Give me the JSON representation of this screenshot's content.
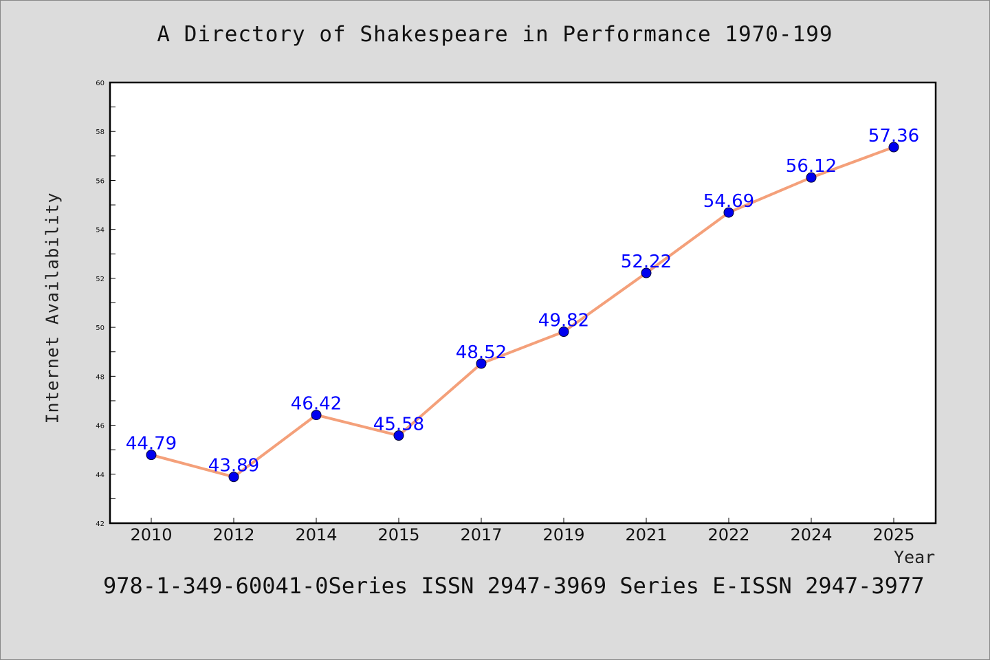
{
  "chart_data": {
    "type": "line",
    "title": "A Directory of Shakespeare in Performance 1970-199",
    "xlabel": "Year",
    "ylabel": "Internet Availability",
    "categories": [
      "2010",
      "2012",
      "2014",
      "2015",
      "2017",
      "2019",
      "2021",
      "2022",
      "2024",
      "2025"
    ],
    "series": [
      {
        "values": [
          44.79,
          43.89,
          46.42,
          45.58,
          48.52,
          49.82,
          52.22,
          54.69,
          56.12,
          57.36
        ],
        "data_labels": [
          "44.79",
          "43.89",
          "46.42",
          "45.58",
          "48.52",
          "49.82",
          "52.22",
          "54.69",
          "56.12",
          "57.36"
        ],
        "line_color": "#f4a07a",
        "marker_color": "#0000ee",
        "label_color": "#0000ff"
      }
    ],
    "ylim": [
      42,
      60
    ],
    "yticks": [
      "42",
      "44",
      "46",
      "48",
      "50",
      "52",
      "54",
      "56",
      "58",
      "60"
    ],
    "grid": false,
    "legend": "none"
  },
  "footer": "978-1-349-60041-0Series ISSN 2947-3969 Series E-ISSN 2947-3977",
  "colors": {
    "background": "#dcdcdc",
    "plot_area": "#ffffff",
    "axis": "#000000"
  }
}
